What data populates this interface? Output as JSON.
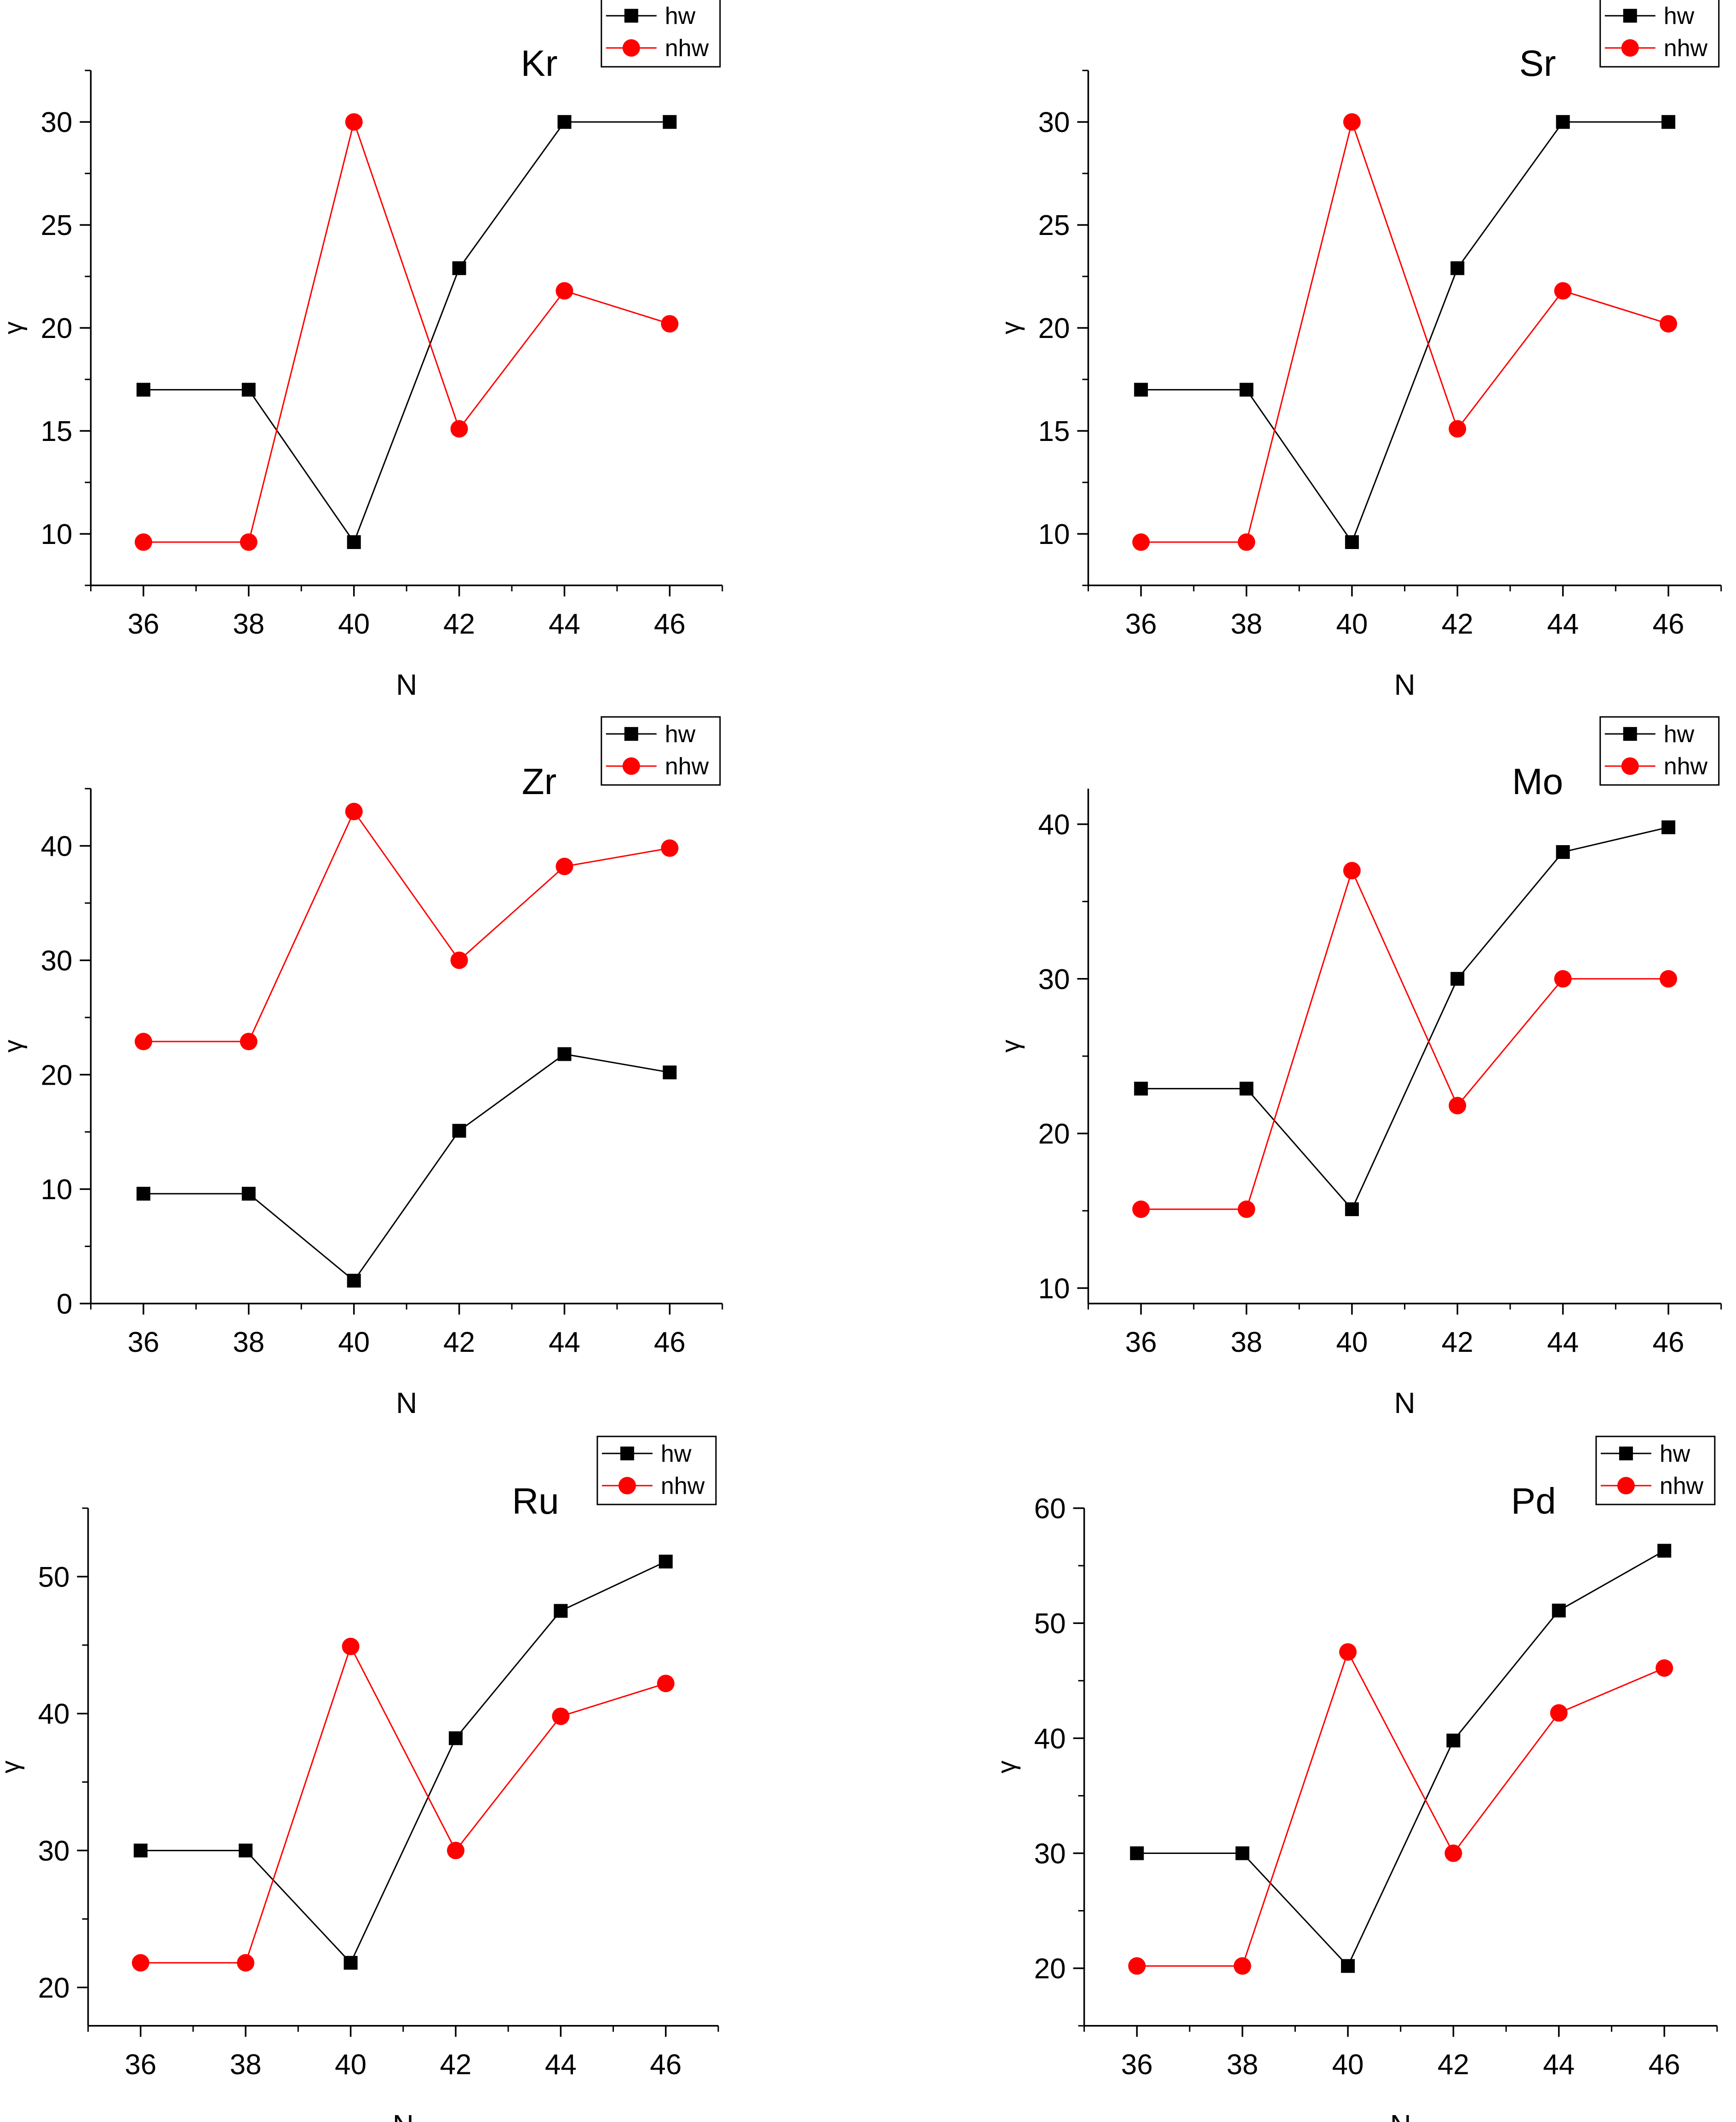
{
  "figure": {
    "legend_labels": [
      "hw",
      "nhw"
    ],
    "colors": {
      "hw": "#000000",
      "nhw": "#ff0000"
    },
    "markers": {
      "hw": "square",
      "nhw": "circle"
    }
  },
  "chart_data": [
    {
      "type": "line",
      "title": "Kr",
      "xlabel": "N",
      "ylabel": "γ",
      "x": [
        36,
        38,
        40,
        42,
        44,
        46
      ],
      "xlim": [
        35,
        47
      ],
      "xticks": [
        36,
        38,
        40,
        42,
        44,
        46
      ],
      "ylim": [
        7.5,
        32.5
      ],
      "yticks": [
        10,
        15,
        20,
        25,
        30
      ],
      "series": [
        {
          "name": "hw",
          "values": [
            17.0,
            17.0,
            9.6,
            22.9,
            30.0,
            30.0
          ]
        },
        {
          "name": "nhw",
          "values": [
            9.6,
            9.6,
            30.0,
            15.1,
            21.8,
            20.2
          ]
        }
      ]
    },
    {
      "type": "line",
      "title": "Sr",
      "xlabel": "N",
      "ylabel": "γ",
      "x": [
        36,
        38,
        40,
        42,
        44,
        46
      ],
      "xlim": [
        35,
        47
      ],
      "xticks": [
        36,
        38,
        40,
        42,
        44,
        46
      ],
      "ylim": [
        7.5,
        32.5
      ],
      "yticks": [
        10,
        15,
        20,
        25,
        30
      ],
      "series": [
        {
          "name": "hw",
          "values": [
            17.0,
            17.0,
            9.6,
            22.9,
            30.0,
            30.0
          ]
        },
        {
          "name": "nhw",
          "values": [
            9.6,
            9.6,
            30.0,
            15.1,
            21.8,
            20.2
          ]
        }
      ]
    },
    {
      "type": "line",
      "title": "Zr",
      "xlabel": "N",
      "ylabel": "γ",
      "x": [
        36,
        38,
        40,
        42,
        44,
        46
      ],
      "xlim": [
        35,
        47
      ],
      "xticks": [
        36,
        38,
        40,
        42,
        44,
        46
      ],
      "ylim": [
        0,
        45
      ],
      "yticks": [
        0,
        10,
        20,
        30,
        40
      ],
      "series": [
        {
          "name": "hw",
          "values": [
            9.6,
            9.6,
            2.0,
            15.1,
            21.8,
            20.2
          ]
        },
        {
          "name": "nhw",
          "values": [
            22.9,
            22.9,
            43.0,
            30.0,
            38.2,
            39.8
          ]
        }
      ]
    },
    {
      "type": "line",
      "title": "Mo",
      "xlabel": "N",
      "ylabel": "γ",
      "x": [
        36,
        38,
        40,
        42,
        44,
        46
      ],
      "xlim": [
        35,
        47
      ],
      "xticks": [
        36,
        38,
        40,
        42,
        44,
        46
      ],
      "ylim": [
        9,
        42.3
      ],
      "yticks": [
        10,
        20,
        30,
        40
      ],
      "series": [
        {
          "name": "hw",
          "values": [
            22.9,
            22.9,
            15.1,
            30.0,
            38.2,
            39.8
          ]
        },
        {
          "name": "nhw",
          "values": [
            15.1,
            15.1,
            37.0,
            21.8,
            30.0,
            30.0
          ]
        }
      ]
    },
    {
      "type": "line",
      "title": "Ru",
      "xlabel": "N",
      "ylabel": "γ",
      "x": [
        36,
        38,
        40,
        42,
        44,
        46
      ],
      "xlim": [
        35,
        47
      ],
      "xticks": [
        36,
        38,
        40,
        42,
        44,
        46
      ],
      "ylim": [
        17.2,
        55
      ],
      "yticks": [
        20,
        30,
        40,
        50
      ],
      "series": [
        {
          "name": "hw",
          "values": [
            30.0,
            30.0,
            21.8,
            38.2,
            47.5,
            51.1
          ]
        },
        {
          "name": "nhw",
          "values": [
            21.8,
            21.8,
            44.9,
            30.0,
            39.8,
            42.2
          ]
        }
      ]
    },
    {
      "type": "line",
      "title": "Pd",
      "xlabel": "N",
      "ylabel": "γ",
      "x": [
        36,
        38,
        40,
        42,
        44,
        46
      ],
      "xlim": [
        35,
        47
      ],
      "xticks": [
        36,
        38,
        40,
        42,
        44,
        46
      ],
      "ylim": [
        15,
        60
      ],
      "yticks": [
        20,
        30,
        40,
        50,
        60
      ],
      "series": [
        {
          "name": "hw",
          "values": [
            30.0,
            30.0,
            20.2,
            39.8,
            51.1,
            56.3
          ]
        },
        {
          "name": "nhw",
          "values": [
            20.2,
            20.2,
            47.5,
            30.0,
            42.2,
            46.1
          ]
        }
      ]
    }
  ]
}
